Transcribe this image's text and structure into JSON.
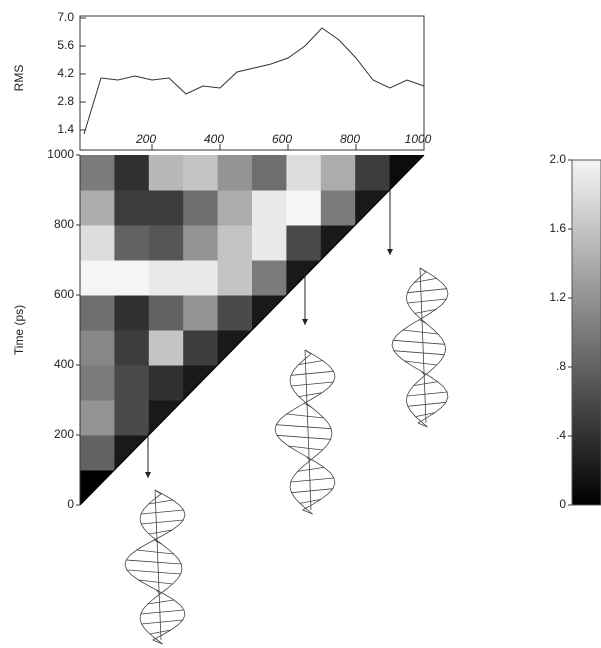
{
  "chart_data": [
    {
      "type": "line",
      "y_label": "RMS",
      "x": [
        0,
        50,
        100,
        150,
        200,
        250,
        300,
        350,
        400,
        450,
        500,
        550,
        600,
        650,
        700,
        750,
        800,
        850,
        900,
        950,
        1000
      ],
      "values": [
        1.2,
        4.0,
        3.9,
        4.1,
        3.9,
        4.0,
        3.2,
        3.6,
        3.5,
        4.3,
        4.5,
        4.7,
        5.0,
        5.6,
        6.5,
        5.9,
        5.0,
        3.9,
        3.5,
        3.9,
        3.6
      ],
      "color": "#333333",
      "xlim": [
        0,
        1000
      ],
      "ylim": [
        0.4,
        7
      ],
      "xticks": [
        200,
        400,
        600,
        800,
        1000
      ],
      "yticks": [
        1.4,
        2.8,
        4.2,
        5.6,
        {
          "value": 7,
          "label": "7.0"
        }
      ]
    },
    {
      "type": "heatmap",
      "y_label": "Time (ps)",
      "xlim": [
        0,
        1000
      ],
      "ylim": [
        0,
        1000
      ],
      "yticks": [
        0,
        200,
        400,
        600,
        800,
        1000
      ],
      "z": [
        [
          0
        ],
        [
          0.8,
          0.2
        ],
        [
          1.2,
          0.6,
          0.2
        ],
        [
          1.0,
          0.6,
          0.4,
          0.2
        ],
        [
          1.1,
          0.5,
          1.6,
          0.5,
          0.2
        ],
        [
          0.9,
          0.4,
          0.8,
          1.2,
          0.6,
          0.2
        ],
        [
          2.0,
          2.0,
          1.9,
          1.9,
          1.6,
          1.0,
          0.2
        ],
        [
          1.8,
          0.8,
          0.7,
          1.2,
          1.6,
          1.9,
          0.6,
          0.2
        ],
        [
          1.4,
          0.5,
          0.5,
          0.9,
          1.4,
          1.9,
          2.0,
          1.0,
          0.2
        ],
        [
          1.0,
          0.4,
          1.5,
          1.6,
          1.2,
          0.9,
          1.8,
          1.4,
          0.5,
          0.1
        ]
      ],
      "colorbar": {
        "lim": [
          0,
          2
        ],
        "ticks": [
          0,
          {
            "value": 0.4,
            "label": ".4"
          },
          {
            "value": 0.8,
            "label": ".8"
          },
          1.2,
          1.6,
          {
            "value": 2,
            "label": "2.0"
          }
        ]
      }
    }
  ]
}
